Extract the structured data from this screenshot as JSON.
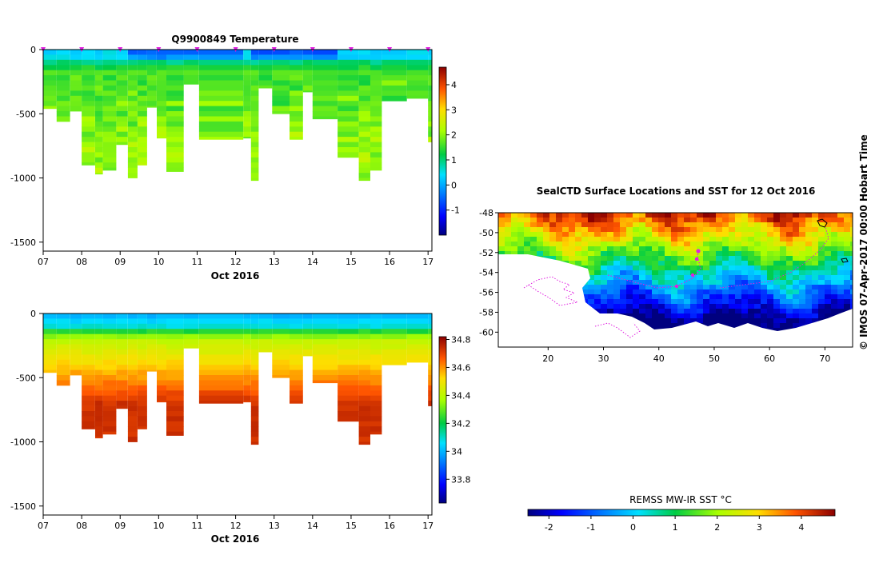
{
  "figure": {
    "credit": "© IMOS 07-Apr-2017 00:00 Hobart Time"
  },
  "chart_data": [
    {
      "type": "heatmap",
      "title": "Q9900849  Temperature",
      "xlabel": "Oct 2016",
      "ylabel": "",
      "x_ticks": [
        "07",
        "08",
        "09",
        "10",
        "11",
        "12",
        "13",
        "14",
        "15",
        "16",
        "17"
      ],
      "x_range": [
        7,
        17.1
      ],
      "y_ticks": [
        "0",
        "-500",
        "-1000",
        "-1500"
      ],
      "y_range": [
        -1570,
        0
      ],
      "variable": "temperature",
      "colorbar": {
        "ticks": [
          "-1",
          "0",
          "1",
          "2",
          "3",
          "4"
        ],
        "range": [
          -2,
          4.7
        ],
        "colormap": "jet"
      },
      "profile_markers": [
        7,
        8,
        9,
        10,
        11,
        12,
        13,
        14,
        15,
        16,
        17
      ],
      "profiles": [
        {
          "day": 7.0,
          "max_depth": 460
        },
        {
          "day": 7.35,
          "max_depth": 560
        },
        {
          "day": 7.7,
          "max_depth": 480
        },
        {
          "day": 8.0,
          "max_depth": 900
        },
        {
          "day": 8.35,
          "max_depth": 970
        },
        {
          "day": 8.55,
          "max_depth": 940
        },
        {
          "day": 8.9,
          "max_depth": 740
        },
        {
          "day": 9.2,
          "max_depth": 1000
        },
        {
          "day": 9.45,
          "max_depth": 900
        },
        {
          "day": 9.7,
          "max_depth": 450
        },
        {
          "day": 9.95,
          "max_depth": 690
        },
        {
          "day": 10.2,
          "max_depth": 950
        },
        {
          "day": 10.65,
          "max_depth": 270
        },
        {
          "day": 11.05,
          "max_depth": 700
        },
        {
          "day": 12.2,
          "max_depth": 690
        },
        {
          "day": 12.4,
          "max_depth": 1020
        },
        {
          "day": 12.6,
          "max_depth": 300
        },
        {
          "day": 12.95,
          "max_depth": 500
        },
        {
          "day": 13.4,
          "max_depth": 700
        },
        {
          "day": 13.75,
          "max_depth": 330
        },
        {
          "day": 14.0,
          "max_depth": 540
        },
        {
          "day": 14.65,
          "max_depth": 840
        },
        {
          "day": 15.2,
          "max_depth": 1020
        },
        {
          "day": 15.5,
          "max_depth": 940
        },
        {
          "day": 15.8,
          "max_depth": 400
        },
        {
          "day": 16.45,
          "max_depth": 380
        },
        {
          "day": 17.0,
          "max_depth": 720
        }
      ],
      "value_range_shown": [
        -1.5,
        2.5
      ]
    },
    {
      "type": "heatmap",
      "title": "",
      "xlabel": "Oct 2016",
      "ylabel": "",
      "x_ticks": [
        "07",
        "08",
        "09",
        "10",
        "11",
        "12",
        "13",
        "14",
        "15",
        "16",
        "17"
      ],
      "x_range": [
        7,
        17.1
      ],
      "y_ticks": [
        "0",
        "-500",
        "-1000",
        "-1500"
      ],
      "y_range": [
        -1570,
        0
      ],
      "variable": "salinity",
      "colorbar": {
        "ticks": [
          "33.8",
          "34",
          "34.2",
          "34.4",
          "34.6",
          "34.8"
        ],
        "range": [
          33.63,
          34.82
        ],
        "colormap": "jet"
      },
      "profiles": "same as temperature section"
    },
    {
      "type": "heatmap",
      "title": "SealCTD Surface Locations and SST for 12 Oct 2016",
      "xlabel": "",
      "ylabel": "",
      "x_ticks": [
        "20",
        "30",
        "40",
        "50",
        "60",
        "70"
      ],
      "x_range": [
        11,
        75
      ],
      "y_ticks": [
        "-48",
        "-50",
        "-52",
        "-54",
        "-56",
        "-58",
        "-60"
      ],
      "y_range": [
        -61.5,
        -48
      ],
      "colorbar": {
        "label": "REMSS MW-IR SST °C",
        "ticks": [
          "-2",
          "-1",
          "0",
          "1",
          "2",
          "3",
          "4"
        ],
        "range": [
          -2.5,
          4.8
        ],
        "colormap": "jet"
      }
    }
  ]
}
